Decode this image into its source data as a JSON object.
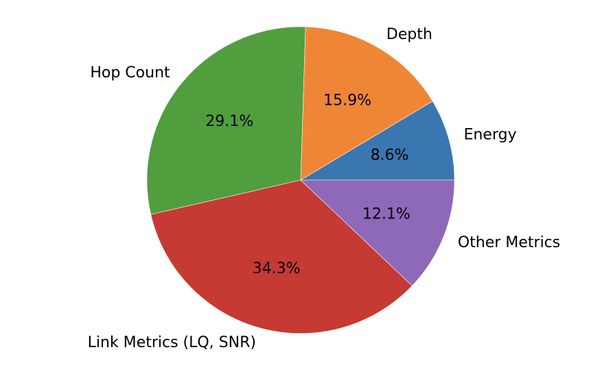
{
  "chart_data": {
    "type": "pie",
    "title": "",
    "start_angle_deg": 0,
    "direction": "counterclockwise",
    "slices": [
      {
        "label": "Energy",
        "value": 8.6,
        "pct_label": "8.6%",
        "color": "#3a76af"
      },
      {
        "label": "Depth",
        "value": 15.9,
        "pct_label": "15.9%",
        "color": "#ef8636"
      },
      {
        "label": "Hop Count",
        "value": 29.1,
        "pct_label": "29.1%",
        "color": "#519e3e"
      },
      {
        "label": "Link Metrics (LQ, SNR)",
        "value": 34.3,
        "pct_label": "34.3%",
        "color": "#c53a32"
      },
      {
        "label": "Other Metrics",
        "value": 12.1,
        "pct_label": "12.1%",
        "color": "#8d69b8"
      }
    ]
  }
}
